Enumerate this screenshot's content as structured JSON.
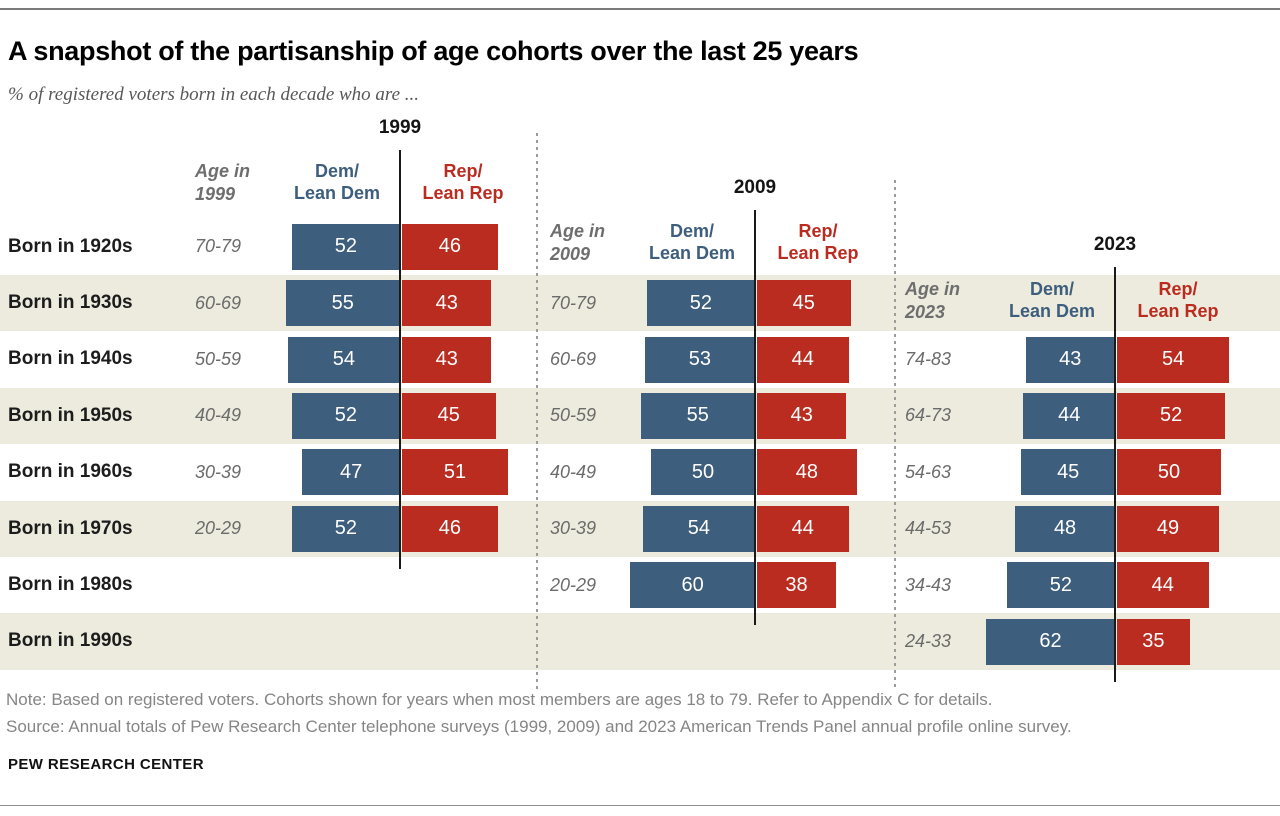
{
  "header": {
    "title": "A snapshot of the partisanship of age cohorts over the last 25 years",
    "subtitle": "% of registered voters born in each decade who are ..."
  },
  "chart_data": {
    "type": "bar",
    "layout_hint": "three diverging horizontal bar panels sharing cohort rows; vertical axis line splits Dem (left, blue) and Rep (right, red); panels separated by dashed gray dividers; alternating row shading",
    "colors": {
      "dem": "#3D5E7C",
      "rep": "#BB2C20",
      "band": "#ECEBDD",
      "axis": "#1a1a1a",
      "divider": "#9c9c9c",
      "value_text": "#ffffff"
    },
    "cohorts": [
      "Born in 1920s",
      "Born in 1930s",
      "Born in 1940s",
      "Born in 1950s",
      "Born in 1960s",
      "Born in 1970s",
      "Born in 1980s",
      "Born in 1990s"
    ],
    "panels": [
      {
        "year": "1999",
        "age_header": [
          "Age in",
          "1999"
        ],
        "dem_header": [
          "Dem/",
          "Lean Dem"
        ],
        "rep_header": [
          "Rep/",
          "Lean Rep"
        ],
        "rows": [
          {
            "cohort": "Born in 1920s",
            "age": "70-79",
            "dem": 52,
            "rep": 46
          },
          {
            "cohort": "Born in 1930s",
            "age": "60-69",
            "dem": 55,
            "rep": 43
          },
          {
            "cohort": "Born in 1940s",
            "age": "50-59",
            "dem": 54,
            "rep": 43
          },
          {
            "cohort": "Born in 1950s",
            "age": "40-49",
            "dem": 52,
            "rep": 45
          },
          {
            "cohort": "Born in 1960s",
            "age": "30-39",
            "dem": 47,
            "rep": 51
          },
          {
            "cohort": "Born in 1970s",
            "age": "20-29",
            "dem": 52,
            "rep": 46
          }
        ]
      },
      {
        "year": "2009",
        "age_header": [
          "Age in",
          "2009"
        ],
        "dem_header": [
          "Dem/",
          "Lean Dem"
        ],
        "rep_header": [
          "Rep/",
          "Lean Rep"
        ],
        "rows": [
          {
            "cohort": "Born in 1930s",
            "age": "70-79",
            "dem": 52,
            "rep": 45
          },
          {
            "cohort": "Born in 1940s",
            "age": "60-69",
            "dem": 53,
            "rep": 44
          },
          {
            "cohort": "Born in 1950s",
            "age": "50-59",
            "dem": 55,
            "rep": 43
          },
          {
            "cohort": "Born in 1960s",
            "age": "40-49",
            "dem": 50,
            "rep": 48
          },
          {
            "cohort": "Born in 1970s",
            "age": "30-39",
            "dem": 54,
            "rep": 44
          },
          {
            "cohort": "Born in 1980s",
            "age": "20-29",
            "dem": 60,
            "rep": 38
          }
        ]
      },
      {
        "year": "2023",
        "age_header": [
          "Age in",
          "2023"
        ],
        "dem_header": [
          "Dem/",
          "Lean Dem"
        ],
        "rep_header": [
          "Rep/",
          "Lean Rep"
        ],
        "rows": [
          {
            "cohort": "Born in 1940s",
            "age": "74-83",
            "dem": 43,
            "rep": 54
          },
          {
            "cohort": "Born in 1950s",
            "age": "64-73",
            "dem": 44,
            "rep": 52
          },
          {
            "cohort": "Born in 1960s",
            "age": "54-63",
            "dem": 45,
            "rep": 50
          },
          {
            "cohort": "Born in 1970s",
            "age": "44-53",
            "dem": 48,
            "rep": 49
          },
          {
            "cohort": "Born in 1980s",
            "age": "34-43",
            "dem": 52,
            "rep": 44
          },
          {
            "cohort": "Born in 1990s",
            "age": "24-33",
            "dem": 62,
            "rep": 35
          }
        ]
      }
    ]
  },
  "footer": {
    "note": "Note: Based on registered voters. Cohorts shown for years when most members are ages 18 to 79. Refer to Appendix C for details.",
    "source": "Source: Annual totals of Pew Research Center telephone surveys (1999, 2009) and 2023 American Trends Panel annual profile online survey.",
    "brand": "PEW RESEARCH CENTER"
  }
}
